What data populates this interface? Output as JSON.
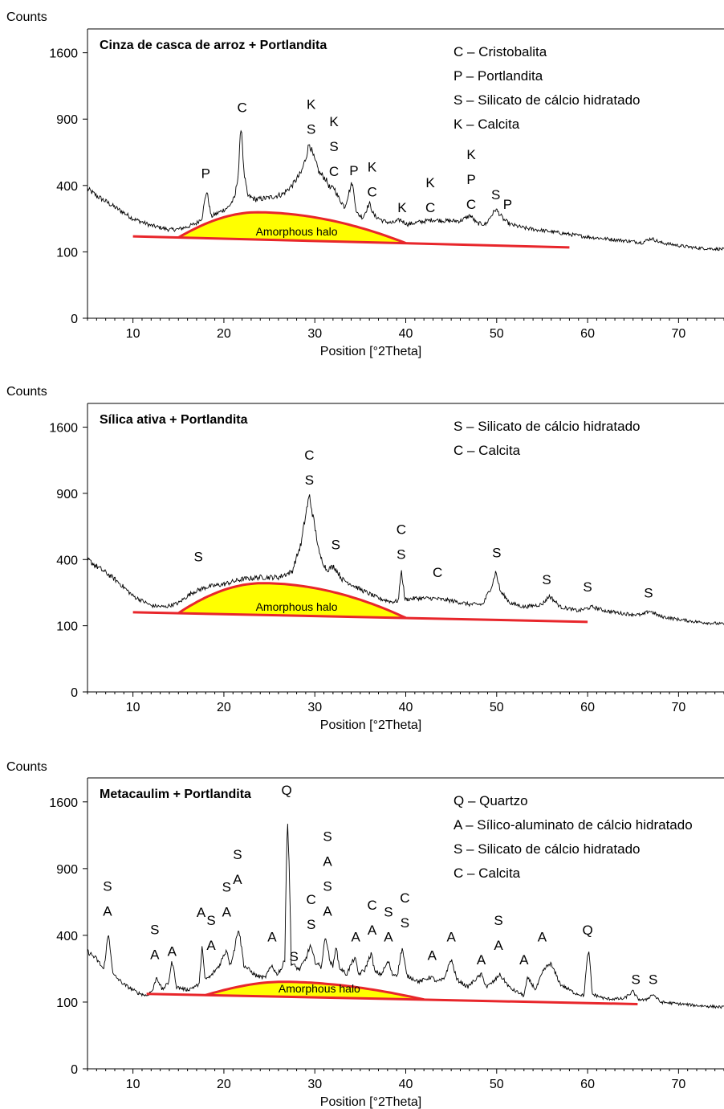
{
  "figure": {
    "y_axis_label": "Counts",
    "x_axis_label": "Position [°2Theta]",
    "halo_label": "Amorphous halo",
    "colors": {
      "halo_fill": "#ffff00",
      "halo_outline": "#e8262b",
      "trace": "#000000"
    }
  },
  "chart_data": [
    {
      "type": "line",
      "title": "Cinza de casca de arroz + Portlandita",
      "xlabel": "Position [°2Theta]",
      "ylabel": "Counts",
      "xlim": [
        5,
        75
      ],
      "ylim": [
        0,
        1900
      ],
      "y_scale": "sqrt",
      "x_ticks": [
        10,
        20,
        30,
        40,
        50,
        60,
        70
      ],
      "y_ticks": [
        0,
        100,
        400,
        900,
        1600
      ],
      "legend": [
        "C – Cristobalita",
        "P – Portlandita",
        "S – Silicato de cálcio hidratado",
        "K – Calcita"
      ],
      "series": [
        {
          "x": [
            5,
            6,
            8,
            10,
            12,
            14,
            15,
            16,
            17,
            17.6,
            18.1,
            18.6,
            19.5,
            20.5,
            21.2,
            21.6,
            21.9,
            22.2,
            22.6,
            23.5,
            25,
            26.5,
            27.5,
            28.5,
            29.0,
            29.4,
            29.8,
            30.5,
            31.2,
            31.7,
            32.1,
            32.6,
            33.3,
            34.1,
            34.6,
            35.3,
            36.0,
            36.5,
            37.5,
            38.5,
            39.4,
            40.2,
            41.5,
            43,
            44.5,
            46,
            47.1,
            47.8,
            48.8,
            49.9,
            50.8,
            51.5,
            53,
            55,
            57,
            60,
            63,
            66,
            67,
            68,
            70,
            72,
            75
          ],
          "y": [
            380,
            340,
            280,
            225,
            195,
            178,
            180,
            190,
            205,
            230,
            370,
            235,
            255,
            280,
            330,
            480,
            860,
            480,
            340,
            320,
            330,
            350,
            400,
            480,
            580,
            700,
            600,
            480,
            440,
            380,
            390,
            330,
            280,
            420,
            250,
            230,
            300,
            240,
            215,
            205,
            220,
            200,
            210,
            220,
            215,
            215,
            240,
            205,
            200,
            270,
            220,
            200,
            185,
            175,
            165,
            150,
            140,
            130,
            145,
            130,
            120,
            112,
            108
          ]
        }
      ],
      "background": {
        "x": [
          10,
          58
        ],
        "y": [
          152,
          114
        ]
      },
      "halo_start": 15,
      "halo_peak": 24,
      "halo_peak_y": 255,
      "halo_end": 40,
      "peak_labels": [
        {
          "x": 18,
          "y": 425,
          "text": [
            "P"
          ]
        },
        {
          "x": 22,
          "y": 935,
          "text": [
            "C"
          ]
        },
        {
          "x": 29.6,
          "y": 745,
          "text": [
            "K",
            "S"
          ]
        },
        {
          "x": 32.1,
          "y": 440,
          "text": [
            "K",
            "S",
            "C"
          ]
        },
        {
          "x": 34.3,
          "y": 445,
          "text": [
            "P"
          ]
        },
        {
          "x": 36.3,
          "y": 320,
          "text": [
            "K",
            "C"
          ]
        },
        {
          "x": 39.6,
          "y": 240,
          "text": [
            "K"
          ]
        },
        {
          "x": 42.7,
          "y": 240,
          "text": [
            "K",
            "C"
          ]
        },
        {
          "x": 47.2,
          "y": 255,
          "text": [
            "K",
            "P",
            "C"
          ]
        },
        {
          "x": 49.9,
          "y": 305,
          "text": [
            "S"
          ]
        },
        {
          "x": 51.2,
          "y": 255,
          "text": [
            "P"
          ]
        }
      ]
    },
    {
      "type": "line",
      "title": "Sílica ativa + Portlandita",
      "xlabel": "Position [°2Theta]",
      "ylabel": "Counts",
      "xlim": [
        5,
        75
      ],
      "ylim": [
        0,
        1900
      ],
      "y_scale": "sqrt",
      "x_ticks": [
        10,
        20,
        30,
        40,
        50,
        60,
        70
      ],
      "y_ticks": [
        0,
        100,
        400,
        900,
        1600
      ],
      "legend": [
        "S – Silicato de cálcio hidratado",
        "C – Calcita"
      ],
      "series": [
        {
          "x": [
            5,
            6,
            8,
            10,
            12,
            13.5,
            15,
            16.5,
            18,
            20,
            22,
            24,
            26,
            27.5,
            28.5,
            29.1,
            29.4,
            29.8,
            30.5,
            31.3,
            32.1,
            33,
            35,
            37,
            38.5,
            39.2,
            39.5,
            39.9,
            41,
            43,
            45,
            47,
            48.5,
            49.5,
            49.9,
            50.4,
            51.5,
            53,
            55,
            55.8,
            57,
            59,
            60.5,
            62,
            64,
            66,
            66.8,
            68,
            70,
            72,
            75
          ],
          "y": [
            400,
            360,
            290,
            210,
            170,
            165,
            180,
            225,
            250,
            265,
            290,
            300,
            300,
            330,
            500,
            760,
            880,
            700,
            430,
            340,
            360,
            290,
            240,
            200,
            185,
            190,
            340,
            195,
            200,
            200,
            190,
            175,
            175,
            260,
            330,
            230,
            180,
            165,
            175,
            210,
            165,
            150,
            165,
            150,
            140,
            135,
            150,
            130,
            120,
            112,
            105
          ]
        }
      ],
      "background": {
        "x": [
          10,
          60
        ],
        "y": [
          145,
          112
        ]
      },
      "halo_start": 15,
      "halo_peak": 24.5,
      "halo_peak_y": 270,
      "halo_end": 40,
      "peak_labels": [
        {
          "x": 17.2,
          "y": 370,
          "text": [
            "S"
          ]
        },
        {
          "x": 29.4,
          "y": 950,
          "text": [
            "C",
            "S"
          ]
        },
        {
          "x": 32.3,
          "y": 445,
          "text": [
            "S"
          ]
        },
        {
          "x": 39.5,
          "y": 385,
          "text": [
            "C",
            "S"
          ]
        },
        {
          "x": 43.5,
          "y": 285,
          "text": [
            "C"
          ]
        },
        {
          "x": 50,
          "y": 395,
          "text": [
            "S"
          ]
        },
        {
          "x": 55.5,
          "y": 250,
          "text": [
            "S"
          ]
        },
        {
          "x": 60,
          "y": 215,
          "text": [
            "S"
          ]
        },
        {
          "x": 66.7,
          "y": 190,
          "text": [
            "S"
          ]
        }
      ]
    },
    {
      "type": "line",
      "title": "Metacaulim + Portlandita",
      "xlabel": "Position [°2Theta]",
      "ylabel": "Counts",
      "xlim": [
        5,
        75
      ],
      "ylim": [
        0,
        1900
      ],
      "y_scale": "sqrt",
      "x_ticks": [
        10,
        20,
        30,
        40,
        50,
        60,
        70
      ],
      "y_ticks": [
        0,
        100,
        400,
        900,
        1600
      ],
      "legend": [
        "Q – Quartzo",
        "A – Sílico-aluminato de cálcio hidratado",
        "S – Silicato de cálcio hidratado",
        "C – Calcita"
      ],
      "series": [
        {
          "x": [
            5,
            6,
            6.8,
            7.3,
            7.8,
            9,
            10.5,
            11.5,
            12.2,
            12.6,
            13.2,
            13.9,
            14.3,
            14.8,
            16,
            17.3,
            17.6,
            17.9,
            18.5,
            19.5,
            20.3,
            20.7,
            21.2,
            21.6,
            22.2,
            23.5,
            24.5,
            25.3,
            25.8,
            26.4,
            26.7,
            27.0,
            27.4,
            28.3,
            29.0,
            29.5,
            30.0,
            30.7,
            31.2,
            31.6,
            32.0,
            32.3,
            32.7,
            33.5,
            34.4,
            34.8,
            35.5,
            36.2,
            36.6,
            37.3,
            38.1,
            38.5,
            39.1,
            39.6,
            40.1,
            41.5,
            42.8,
            43.4,
            44.2,
            45.0,
            45.6,
            46.8,
            48.3,
            48.9,
            49.8,
            50.3,
            51.5,
            53.0,
            53.4,
            54.3,
            55.2,
            55.9,
            57,
            58.5,
            59.6,
            60.1,
            60.5,
            62,
            64,
            65.0,
            65.5,
            66.3,
            67.2,
            68,
            70,
            72,
            75
          ],
          "y": [
            310,
            270,
            220,
            410,
            200,
            160,
            130,
            120,
            140,
            190,
            140,
            165,
            260,
            150,
            140,
            160,
            340,
            180,
            190,
            240,
            320,
            240,
            330,
            450,
            240,
            195,
            185,
            240,
            200,
            230,
            270,
            1420,
            250,
            220,
            270,
            340,
            260,
            230,
            400,
            270,
            230,
            340,
            230,
            200,
            280,
            200,
            220,
            300,
            210,
            200,
            260,
            200,
            200,
            330,
            195,
            170,
            190,
            170,
            180,
            270,
            180,
            150,
            200,
            150,
            175,
            200,
            145,
            120,
            185,
            140,
            220,
            250,
            160,
            130,
            120,
            320,
            125,
            110,
            110,
            135,
            110,
            105,
            125,
            100,
            95,
            90,
            85
          ]
        }
      ],
      "background": {
        "x": [
          11.5,
          65.5
        ],
        "y": [
          126,
          94
        ]
      },
      "halo_start": 18,
      "halo_peak": 27,
      "halo_peak_y": 170,
      "halo_end": 42,
      "peak_labels": [
        {
          "x": 7.2,
          "y": 505,
          "text": [
            "S",
            "A"
          ]
        },
        {
          "x": 12.4,
          "y": 255,
          "text": [
            "S",
            "A"
          ]
        },
        {
          "x": 14.3,
          "y": 270,
          "text": [
            "A"
          ]
        },
        {
          "x": 17.5,
          "y": 495,
          "text": [
            "A"
          ]
        },
        {
          "x": 18.6,
          "y": 300,
          "text": [
            "S",
            "A"
          ]
        },
        {
          "x": 20.3,
          "y": 500,
          "text": [
            "S",
            "A"
          ]
        },
        {
          "x": 21.5,
          "y": 740,
          "text": [
            "S",
            "A"
          ]
        },
        {
          "x": 25.3,
          "y": 345,
          "text": [
            "A"
          ]
        },
        {
          "x": 26.9,
          "y": 1645,
          "text": [
            "Q"
          ]
        },
        {
          "x": 27.7,
          "y": 245,
          "text": [
            "S"
          ]
        },
        {
          "x": 29.6,
          "y": 420,
          "text": [
            "C",
            "S"
          ]
        },
        {
          "x": 31.4,
          "y": 505,
          "text": [
            "S",
            "A",
            "S",
            "A"
          ]
        },
        {
          "x": 34.5,
          "y": 345,
          "text": [
            "A"
          ]
        },
        {
          "x": 36.3,
          "y": 385,
          "text": [
            "C",
            "A"
          ]
        },
        {
          "x": 38.1,
          "y": 345,
          "text": [
            "S",
            "A"
          ]
        },
        {
          "x": 39.9,
          "y": 430,
          "text": [
            "C",
            "S"
          ]
        },
        {
          "x": 42.9,
          "y": 250,
          "text": [
            "A"
          ]
        },
        {
          "x": 45.0,
          "y": 345,
          "text": [
            "A"
          ]
        },
        {
          "x": 48.3,
          "y": 230,
          "text": [
            "A"
          ]
        },
        {
          "x": 50.2,
          "y": 300,
          "text": [
            "S",
            "A"
          ]
        },
        {
          "x": 53.0,
          "y": 230,
          "text": [
            "A"
          ]
        },
        {
          "x": 55.0,
          "y": 345,
          "text": [
            "A"
          ]
        },
        {
          "x": 60.0,
          "y": 385,
          "text": [
            "Q"
          ]
        },
        {
          "x": 65.3,
          "y": 150,
          "text": [
            "S"
          ]
        },
        {
          "x": 67.2,
          "y": 150,
          "text": [
            "S"
          ]
        }
      ]
    }
  ]
}
